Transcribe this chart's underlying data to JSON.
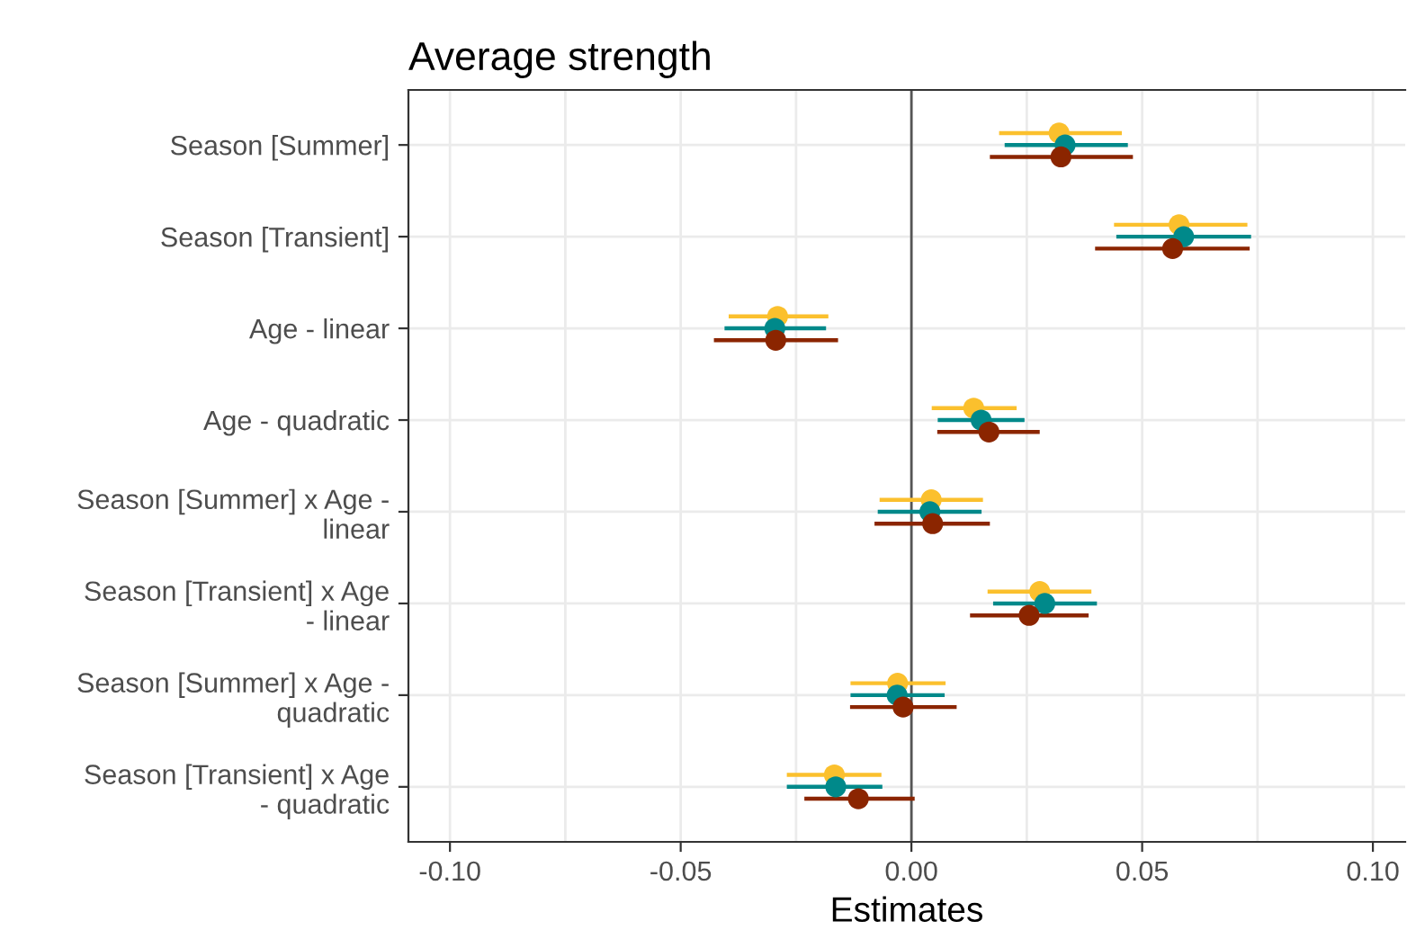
{
  "chart_data": {
    "type": "scatter",
    "title": "Average strength",
    "xlabel": "Estimates",
    "categories": [
      "Season [Summer]",
      "Season [Transient]",
      "Age - linear",
      "Age - quadratic",
      "Season [Summer] x Age -\nlinear",
      "Season [Transient] x Age\n- linear",
      "Season [Summer] x Age -\nquadratic",
      "Season [Transient] x Age\n- quadratic"
    ],
    "orientation": "horizontal",
    "xlim": [
      -0.109,
      0.107
    ],
    "xticks": [
      {
        "value": -0.1,
        "label": "-0.10"
      },
      {
        "value": -0.075,
        "label": null
      },
      {
        "value": -0.05,
        "label": "-0.05"
      },
      {
        "value": -0.025,
        "label": null
      },
      {
        "value": 0,
        "label": "0.00"
      },
      {
        "value": 0.025,
        "label": null
      },
      {
        "value": 0.05,
        "label": "0.05"
      },
      {
        "value": 0.075,
        "label": null
      },
      {
        "value": 0.1,
        "label": "0.10"
      }
    ],
    "grid": true,
    "marker": "circle",
    "ref_lines": [
      {
        "axis": "x",
        "value": 0,
        "color": "#555555"
      }
    ],
    "series": [
      {
        "color": "#fbc02d",
        "values": [
          0.032,
          0.058,
          -0.029,
          0.0135,
          0.0043,
          0.0278,
          -0.003,
          -0.0167
        ],
        "errors": [
          [
            0.019,
            0.0456
          ],
          [
            0.0439,
            0.0728
          ],
          [
            -0.0396,
            -0.018
          ],
          [
            0.0044,
            0.0228
          ],
          [
            -0.0069,
            0.0155
          ],
          [
            0.0165,
            0.039
          ],
          [
            -0.0132,
            0.0074
          ],
          [
            -0.027,
            -0.0065
          ]
        ]
      },
      {
        "color": "#00898a",
        "values": [
          0.0333,
          0.059,
          -0.0296,
          0.0151,
          0.004,
          0.0289,
          -0.0031,
          -0.0164
        ],
        "errors": [
          [
            0.0202,
            0.0469
          ],
          [
            0.0444,
            0.0736
          ],
          [
            -0.0405,
            -0.0185
          ],
          [
            0.0057,
            0.0245
          ],
          [
            -0.0073,
            0.0152
          ],
          [
            0.0177,
            0.0402
          ],
          [
            -0.0132,
            0.0072
          ],
          [
            -0.027,
            -0.0063
          ]
        ]
      },
      {
        "color": "#8b2500",
        "values": [
          0.0324,
          0.0566,
          -0.0294,
          0.0168,
          0.0046,
          0.0255,
          -0.0018,
          -0.0115
        ],
        "errors": [
          [
            0.017,
            0.048
          ],
          [
            0.0398,
            0.0733
          ],
          [
            -0.0428,
            -0.0159
          ],
          [
            0.0056,
            0.0278
          ],
          [
            -0.008,
            0.017
          ],
          [
            0.0127,
            0.0384
          ],
          [
            -0.0133,
            0.0098
          ],
          [
            -0.0232,
            0.0007
          ]
        ]
      }
    ]
  }
}
